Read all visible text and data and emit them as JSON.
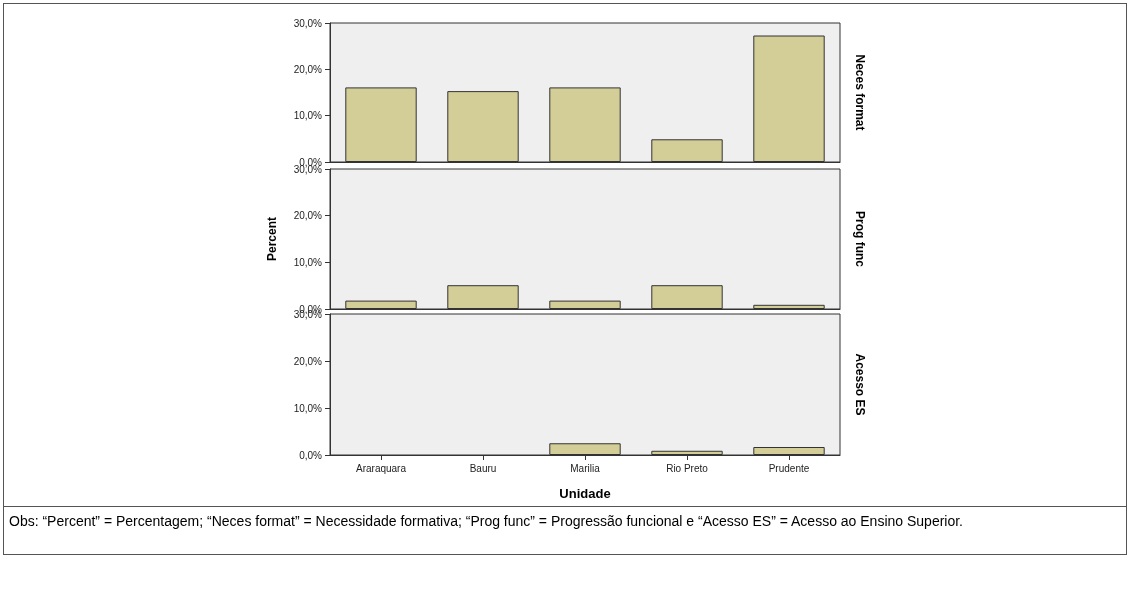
{
  "chart_data": [
    {
      "type": "bar",
      "categories": [
        null,
        null,
        null,
        null,
        null
      ],
      "series": [
        {
          "name": "Neces format",
          "color": "#d3ce97",
          "values": [
            16.1,
            15.3,
            16.1,
            4.9,
            27.3
          ]
        }
      ],
      "ylim": [
        0,
        30
      ],
      "yticks": [
        {
          "value": 0,
          "label": "0,0%"
        },
        {
          "value": 10,
          "label": "10,0%"
        },
        {
          "value": 20,
          "label": "20,0%"
        },
        {
          "value": 30,
          "label": "30,0%"
        }
      ],
      "grid": false,
      "tick_labels": "y"
    },
    {
      "type": "bar",
      "ylabel": "Percent",
      "categories": [
        null,
        null,
        null,
        null,
        null
      ],
      "series": [
        {
          "name": "Prog func",
          "color": "#d3ce97",
          "values": [
            1.8,
            5.1,
            1.8,
            5.1,
            0.9
          ]
        }
      ],
      "ylim": [
        0,
        30
      ],
      "yticks": [
        {
          "value": 0,
          "label": "0,0%"
        },
        {
          "value": 10,
          "label": "10,0%"
        },
        {
          "value": 20,
          "label": "20,0%"
        },
        {
          "value": 30,
          "label": "30,0%"
        }
      ],
      "grid": false,
      "tick_labels": "y"
    },
    {
      "type": "bar",
      "xlabel": "Unidade",
      "categories": [
        "Araraquara",
        "Bauru",
        "Marilia",
        "Rio Preto",
        "Prudente"
      ],
      "series": [
        {
          "name": "Acesso ES",
          "color": "#d3ce97",
          "values": [
            0,
            0,
            2.5,
            0.9,
            1.7
          ]
        }
      ],
      "ylim": [
        0,
        30
      ],
      "yticks": [
        {
          "value": 0,
          "label": "0,0%"
        },
        {
          "value": 10,
          "label": "10,0%"
        },
        {
          "value": 20,
          "label": "20,0%"
        },
        {
          "value": 30,
          "label": "30,0%"
        }
      ],
      "grid": false,
      "annotations": [
        "Obs: “Percent” = Percentagem; “Neces format” = Necessidade formativa; “Prog func” = Progressão funcional e “Acesso ES” = Acesso ao Ensino Superior."
      ]
    }
  ]
}
